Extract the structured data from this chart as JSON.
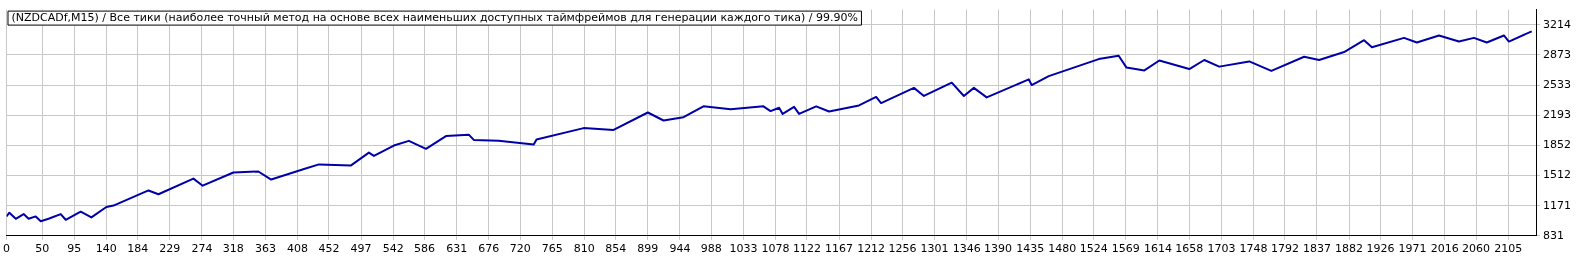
{
  "chart_data": {
    "type": "line",
    "title": "(NZDCADf,M15) / Все тики (наиболее точный метод на основе всех наименьших доступных таймфреймов для генерации каждого тика) / 99.90%",
    "series": [
      {
        "color": "#0000a8",
        "x": [
          0,
          4,
          13,
          24,
          31,
          41,
          48,
          59,
          76,
          83,
          104,
          119,
          140,
          150,
          199,
          213,
          262,
          275,
          318,
          353,
          371,
          416,
          438,
          483,
          508,
          515,
          543,
          564,
          588,
          616,
          648,
          655,
          690,
          739,
          743,
          809,
          851,
          899,
          921,
          949,
          977,
          1015,
          1061,
          1071,
          1083,
          1088,
          1104,
          1111,
          1135,
          1153,
          1195,
          1219,
          1226,
          1272,
          1286,
          1325,
          1342,
          1356,
          1374,
          1433,
          1437,
          1461,
          1531,
          1559,
          1570,
          1595,
          1616,
          1658,
          1679,
          1700,
          1742,
          1773,
          1819,
          1840,
          1875,
          1903,
          1914,
          1959,
          1977,
          2008,
          2036,
          2057,
          2075,
          2099,
          2106,
          2138
        ],
        "values": [
          1050,
          1092,
          1023,
          1076,
          1023,
          1050,
          996,
          1023,
          1076,
          1012,
          1103,
          1039,
          1156,
          1172,
          1343,
          1300,
          1477,
          1397,
          1546,
          1557,
          1466,
          1583,
          1637,
          1626,
          1770,
          1733,
          1850,
          1903,
          1813,
          1957,
          1973,
          1914,
          1903,
          1861,
          1919,
          2047,
          2026,
          2223,
          2133,
          2170,
          2293,
          2261,
          2293,
          2239,
          2277,
          2207,
          2287,
          2207,
          2293,
          2234,
          2303,
          2399,
          2330,
          2501,
          2410,
          2560,
          2410,
          2501,
          2394,
          2597,
          2533,
          2634,
          2826,
          2864,
          2730,
          2698,
          2810,
          2714,
          2816,
          2741,
          2800,
          2693,
          2853,
          2816,
          2906,
          3040,
          2960,
          3066,
          3013,
          3093,
          3024,
          3066,
          3013,
          3093,
          3024,
          3140
        ]
      }
    ],
    "xlim": [
      0,
      2144
    ],
    "xticks": [
      0,
      50,
      95,
      140,
      184,
      229,
      274,
      318,
      363,
      408,
      452,
      497,
      542,
      586,
      631,
      676,
      720,
      765,
      810,
      854,
      899,
      944,
      988,
      1033,
      1078,
      1122,
      1167,
      1212,
      1256,
      1301,
      1346,
      1390,
      1435,
      1480,
      1524,
      1569,
      1614,
      1658,
      1703,
      1748,
      1792,
      1837,
      1882,
      1926,
      1971,
      2016,
      2060,
      2105
    ],
    "ylim": [
      831,
      3385
    ],
    "yticks": [
      831,
      1171,
      1512,
      1852,
      2193,
      2533,
      2873,
      3214
    ],
    "grid": true,
    "legend": false,
    "marker": "none",
    "line_style": "solid"
  }
}
